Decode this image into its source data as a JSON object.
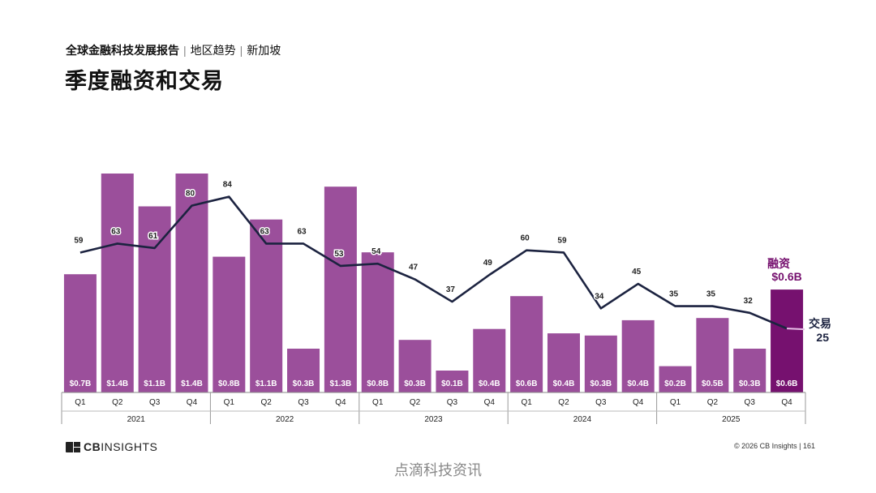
{
  "header": {
    "report": "全球金融科技发展报告",
    "sep1": "|",
    "section": "地区趋势",
    "sep2": "|",
    "region": "新加坡"
  },
  "title": "季度融资和交易",
  "footer": {
    "logo_cb": "CB",
    "logo_insights": "INSIGHTS",
    "copyright": "© 2026 CB Insights  |  161"
  },
  "watermark": "点滴科技资讯",
  "chart_data": {
    "type": "bar",
    "categories": [
      "Q1",
      "Q2",
      "Q3",
      "Q4",
      "Q1",
      "Q2",
      "Q3",
      "Q4",
      "Q1",
      "Q2",
      "Q3",
      "Q4",
      "Q1",
      "Q2",
      "Q3",
      "Q4",
      "Q1",
      "Q2",
      "Q3",
      "Q4"
    ],
    "years": [
      "2021",
      "2022",
      "2023",
      "2024",
      "2025"
    ],
    "series": [
      {
        "name": "融资",
        "type": "bar",
        "unit": "$B",
        "values": [
          0.7,
          1.4,
          1.1,
          1.4,
          0.8,
          1.1,
          0.3,
          1.3,
          0.8,
          0.3,
          0.1,
          0.4,
          0.6,
          0.4,
          0.3,
          0.4,
          0.2,
          0.5,
          0.3,
          0.6
        ],
        "bar_heights": [
          0.54,
          1.0,
          0.85,
          1.0,
          0.62,
          0.79,
          0.2,
          0.94,
          0.64,
          0.24,
          0.1,
          0.29,
          0.44,
          0.27,
          0.26,
          0.33,
          0.12,
          0.34,
          0.2,
          0.47
        ],
        "labels": [
          "$0.7B",
          "$1.4B",
          "$1.1B",
          "$1.4B",
          "$0.8B",
          "$1.1B",
          "$0.3B",
          "$1.3B",
          "$0.8B",
          "$0.3B",
          "$0.1B",
          "$0.4B",
          "$0.6B",
          "$0.4B",
          "$0.3B",
          "$0.4B",
          "$0.2B",
          "$0.5B",
          "$0.3B",
          "$0.6B"
        ]
      },
      {
        "name": "交易",
        "type": "line",
        "values": [
          59,
          63,
          61,
          80,
          84,
          63,
          63,
          53,
          54,
          47,
          37,
          49,
          60,
          59,
          34,
          45,
          35,
          35,
          32,
          25
        ]
      }
    ],
    "colors": {
      "bar": "#9b4f9b",
      "bar_highlight": "#76116f",
      "line": "#1c2340",
      "callout": "#76116f"
    },
    "callout": {
      "funding_label": "融资",
      "funding_value": "$0.6B",
      "deals_label": "交易",
      "deals_value": "25"
    },
    "ylim_deals": [
      0,
      100
    ]
  }
}
